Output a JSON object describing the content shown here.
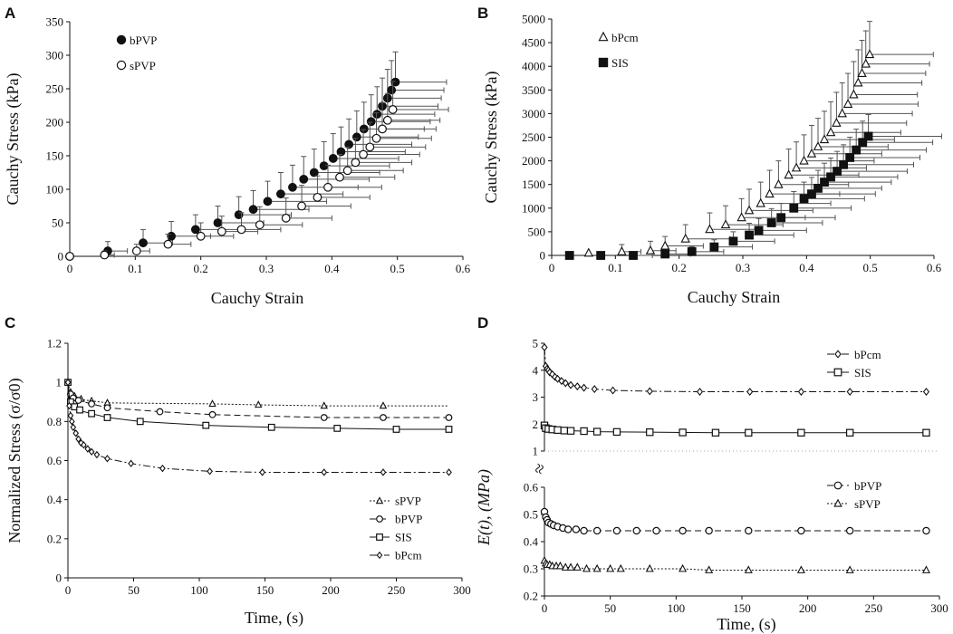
{
  "chart_data": [
    {
      "panel": "A",
      "type": "scatter",
      "xlabel": "Cauchy Strain",
      "ylabel": "Cauchy Stress (kPa)",
      "xlim": [
        0,
        0.6
      ],
      "ylim": [
        0,
        350
      ],
      "xticks": [
        0,
        0.1,
        0.2,
        0.3,
        0.4,
        0.5,
        0.6
      ],
      "yticks": [
        0,
        50,
        100,
        150,
        200,
        250,
        300,
        350
      ],
      "xtick_labels": [
        "0",
        "0.1",
        "0.2",
        "0.3",
        "0.4",
        "0.5",
        "0.6"
      ],
      "ytick_labels": [
        "0",
        "50",
        "100",
        "150",
        "200",
        "250",
        "300",
        "350"
      ],
      "legend_position": "top-left",
      "series": [
        {
          "name": "bPVP",
          "marker": "filled-circle",
          "x": [
            0.0,
            0.058,
            0.112,
            0.155,
            0.192,
            0.226,
            0.258,
            0.28,
            0.302,
            0.322,
            0.34,
            0.357,
            0.373,
            0.388,
            0.402,
            0.414,
            0.426,
            0.438,
            0.449,
            0.46,
            0.469,
            0.477,
            0.485,
            0.491,
            0.497
          ],
          "y": [
            0,
            8,
            20,
            30,
            40,
            50,
            62,
            70,
            82,
            93,
            103,
            115,
            125,
            135,
            146,
            156,
            167,
            178,
            190,
            201,
            212,
            224,
            236,
            248,
            260
          ],
          "xerr": [
            0,
            0.03,
            0.045,
            0.06,
            0.065,
            0.07,
            0.08,
            0.085,
            0.09,
            0.095,
            0.1,
            0.1,
            0.1,
            0.1,
            0.1,
            0.098,
            0.096,
            0.094,
            0.092,
            0.09,
            0.088,
            0.085,
            0.082,
            0.08,
            0.078
          ],
          "yerr": [
            0,
            14,
            20,
            22,
            22,
            25,
            27,
            28,
            30,
            32,
            33,
            34,
            35,
            36,
            37,
            37,
            38,
            39,
            40,
            40,
            41,
            42,
            43,
            44,
            45
          ]
        },
        {
          "name": "sPVP",
          "marker": "open-circle",
          "x": [
            0.0,
            0.053,
            0.102,
            0.15,
            0.2,
            0.232,
            0.262,
            0.29,
            0.33,
            0.354,
            0.378,
            0.394,
            0.412,
            0.424,
            0.436,
            0.448,
            0.458,
            0.468,
            0.477,
            0.485,
            0.493
          ],
          "y": [
            0,
            2,
            8,
            18,
            30,
            37,
            40,
            47,
            57,
            75,
            88,
            103,
            118,
            128,
            140,
            152,
            163,
            176,
            190,
            203,
            219
          ],
          "xerr": [
            0,
            0.015,
            0.02,
            0.035,
            0.05,
            0.055,
            0.06,
            0.065,
            0.07,
            0.075,
            0.08,
            0.082,
            0.084,
            0.085,
            0.086,
            0.086,
            0.085,
            0.084,
            0.082,
            0.08,
            0.085
          ],
          "yerr": [
            0,
            6,
            10,
            15,
            20,
            23,
            25,
            27,
            30,
            31,
            32,
            33,
            34,
            35,
            36,
            37,
            37,
            38,
            39,
            40,
            42
          ]
        }
      ]
    },
    {
      "panel": "B",
      "type": "scatter",
      "xlabel": "Cauchy Strain",
      "ylabel": "Cauchy Stress (kPa)",
      "xlim": [
        0,
        0.6
      ],
      "ylim": [
        0,
        5000
      ],
      "xticks": [
        0,
        0.1,
        0.2,
        0.3,
        0.4,
        0.5,
        0.6
      ],
      "yticks": [
        0,
        500,
        1000,
        1500,
        2000,
        2500,
        3000,
        3500,
        4000,
        4500,
        5000
      ],
      "xtick_labels": [
        "0",
        "0.1",
        "0.2",
        "0.3",
        "0.4",
        "0.5",
        "0.6"
      ],
      "ytick_labels": [
        "0",
        "500",
        "1000",
        "1500",
        "2000",
        "2500",
        "3000",
        "3500",
        "4000",
        "4500",
        "5000"
      ],
      "legend_position": "top-left",
      "series": [
        {
          "name": "bPcm",
          "marker": "open-triangle",
          "x": [
            0.058,
            0.11,
            0.155,
            0.178,
            0.21,
            0.248,
            0.273,
            0.298,
            0.31,
            0.328,
            0.342,
            0.356,
            0.372,
            0.384,
            0.396,
            0.408,
            0.418,
            0.428,
            0.438,
            0.447,
            0.456,
            0.465,
            0.474,
            0.481,
            0.487,
            0.493,
            0.499
          ],
          "y": [
            50,
            80,
            100,
            200,
            350,
            550,
            650,
            800,
            950,
            1100,
            1300,
            1500,
            1700,
            1850,
            2000,
            2150,
            2300,
            2450,
            2600,
            2800,
            3000,
            3200,
            3400,
            3650,
            3850,
            4050,
            4250
          ],
          "xerr": [
            0,
            0.03,
            0.04,
            0.06,
            0.07,
            0.08,
            0.09,
            0.1,
            0.1,
            0.11,
            0.11,
            0.11,
            0.11,
            0.11,
            0.11,
            0.11,
            0.11,
            0.11,
            0.11,
            0.11,
            0.11,
            0.11,
            0.1,
            0.1,
            0.1,
            0.1,
            0.1
          ],
          "yerr": [
            0,
            150,
            200,
            200,
            300,
            350,
            400,
            400,
            450,
            450,
            500,
            500,
            550,
            550,
            550,
            600,
            600,
            600,
            650,
            650,
            650,
            650,
            700,
            700,
            700,
            700,
            700
          ]
        },
        {
          "name": "SIS",
          "marker": "filled-square",
          "x": [
            0.028,
            0.077,
            0.128,
            0.178,
            0.22,
            0.255,
            0.285,
            0.31,
            0.325,
            0.345,
            0.36,
            0.38,
            0.396,
            0.408,
            0.418,
            0.428,
            0.438,
            0.448,
            0.458,
            0.468,
            0.478,
            0.488,
            0.497
          ],
          "y": [
            0,
            0,
            0,
            30,
            80,
            180,
            300,
            430,
            530,
            690,
            800,
            1000,
            1200,
            1300,
            1420,
            1550,
            1660,
            1780,
            1920,
            2070,
            2230,
            2390,
            2520
          ],
          "xerr": [
            0,
            0,
            0.03,
            0.04,
            0.05,
            0.06,
            0.065,
            0.07,
            0.075,
            0.08,
            0.085,
            0.09,
            0.095,
            0.1,
            0.1,
            0.105,
            0.105,
            0.11,
            0.11,
            0.11,
            0.11,
            0.11,
            0.115
          ],
          "yerr": [
            0,
            0,
            0,
            0,
            100,
            150,
            200,
            250,
            250,
            300,
            300,
            350,
            350,
            350,
            380,
            400,
            400,
            420,
            420,
            430,
            440,
            450,
            460
          ]
        }
      ]
    },
    {
      "panel": "C",
      "type": "line",
      "xlabel": "Time, (s)",
      "ylabel": "Normalized Stress (σ/σ0)",
      "xlim": [
        0,
        300
      ],
      "ylim": [
        0,
        1.2
      ],
      "xticks": [
        0,
        50,
        100,
        150,
        200,
        250,
        300
      ],
      "yticks": [
        0,
        0.2,
        0.4,
        0.6,
        0.8,
        1,
        1.2
      ],
      "xtick_labels": [
        "0",
        "50",
        "100",
        "150",
        "200",
        "250",
        "300"
      ],
      "ytick_labels": [
        "0",
        "0.2",
        "0.4",
        "0.6",
        "0.8",
        "1",
        "1.2"
      ],
      "legend_position": "bottom-right",
      "series": [
        {
          "name": "sPVP",
          "marker": "open-triangle",
          "dash": "dotted",
          "x": [
            0,
            1,
            2,
            3,
            5,
            8,
            12,
            18,
            30,
            110,
            145,
            195,
            240,
            290
          ],
          "y": [
            1.0,
            0.97,
            0.95,
            0.94,
            0.93,
            0.92,
            0.91,
            0.905,
            0.895,
            0.89,
            0.885,
            0.88,
            0.88,
            0.88
          ],
          "markers_x": [
            0,
            2,
            5,
            10,
            18,
            30,
            110,
            145,
            195,
            240
          ]
        },
        {
          "name": "bPVP",
          "marker": "open-circle",
          "dash": "dashed",
          "x": [
            0,
            1,
            2,
            4,
            7,
            12,
            18,
            30,
            70,
            110,
            195,
            240,
            290
          ],
          "y": [
            1.0,
            0.96,
            0.94,
            0.92,
            0.91,
            0.9,
            0.89,
            0.87,
            0.85,
            0.835,
            0.82,
            0.82,
            0.82
          ],
          "markers_x": [
            0,
            2,
            4,
            8,
            18,
            30,
            70,
            110,
            195,
            240,
            290
          ]
        },
        {
          "name": "SIS",
          "marker": "open-square",
          "dash": "solid",
          "x": [
            0,
            1,
            2,
            4,
            7,
            12,
            18,
            30,
            55,
            105,
            155,
            205,
            250,
            290
          ],
          "y": [
            1.0,
            0.93,
            0.9,
            0.88,
            0.865,
            0.85,
            0.84,
            0.82,
            0.8,
            0.78,
            0.77,
            0.765,
            0.76,
            0.76
          ],
          "markers_x": [
            0,
            2,
            5,
            9,
            18,
            30,
            55,
            105,
            155,
            205,
            250,
            290
          ]
        },
        {
          "name": "bPcm",
          "marker": "open-diamond",
          "dash": "dashdot",
          "x": [
            0,
            1,
            2,
            3,
            4,
            6,
            8,
            10,
            12,
            15,
            18,
            22,
            30,
            48,
            72,
            108,
            148,
            195,
            240,
            290
          ],
          "y": [
            1.0,
            0.88,
            0.83,
            0.8,
            0.77,
            0.74,
            0.71,
            0.69,
            0.68,
            0.66,
            0.645,
            0.63,
            0.61,
            0.585,
            0.56,
            0.545,
            0.54,
            0.54,
            0.54,
            0.54
          ],
          "markers_x": [
            0,
            1,
            2,
            3,
            4,
            6,
            8,
            10,
            12,
            15,
            18,
            22,
            30,
            48,
            72,
            108,
            148,
            195,
            240,
            290
          ]
        }
      ]
    },
    {
      "panel": "D",
      "type": "line",
      "xlabel": "Time, (s)",
      "ylabel": "E(t), (MPa)",
      "xlim": [
        0,
        300
      ],
      "broken_axis": true,
      "upper_range": [
        1,
        5
      ],
      "lower_range": [
        0.2,
        0.6
      ],
      "xticks": [
        0,
        50,
        100,
        150,
        200,
        250,
        300
      ],
      "xtick_labels": [
        "0",
        "50",
        "100",
        "150",
        "200",
        "250",
        "300"
      ],
      "upper_yticks": [
        1,
        2,
        3,
        4,
        5
      ],
      "upper_ytick_labels": [
        "1",
        "2",
        "3",
        "4",
        "5"
      ],
      "lower_yticks": [
        0.2,
        0.3,
        0.4,
        0.5,
        0.6
      ],
      "lower_ytick_labels": [
        "0.2",
        "0.3",
        "0.4",
        "0.5",
        "0.6"
      ],
      "legend_position": "top-right (each axis segment)",
      "upper_series": [
        {
          "name": "bPcm",
          "marker": "open-diamond",
          "dash": "dashdot",
          "x": [
            0,
            1,
            2,
            3,
            4,
            6,
            8,
            10,
            13,
            16,
            20,
            25,
            30,
            38,
            52,
            80,
            118,
            156,
            195,
            232,
            290
          ],
          "y": [
            4.85,
            4.15,
            4.05,
            4.0,
            3.92,
            3.85,
            3.75,
            3.68,
            3.6,
            3.52,
            3.45,
            3.4,
            3.35,
            3.3,
            3.25,
            3.22,
            3.2,
            3.2,
            3.2,
            3.2,
            3.2
          ],
          "markers_x": [
            0,
            1,
            2,
            3,
            4,
            6,
            8,
            10,
            13,
            16,
            20,
            25,
            30,
            38,
            52,
            80,
            118,
            156,
            195,
            232,
            290
          ]
        },
        {
          "name": "SIS",
          "marker": "open-square",
          "dash": "solid",
          "x": [
            0,
            1,
            3,
            6,
            10,
            15,
            20,
            30,
            40,
            55,
            80,
            105,
            130,
            155,
            195,
            232,
            290
          ],
          "y": [
            1.95,
            1.85,
            1.82,
            1.8,
            1.78,
            1.76,
            1.75,
            1.74,
            1.72,
            1.71,
            1.7,
            1.69,
            1.68,
            1.68,
            1.68,
            1.68,
            1.68
          ],
          "markers_x": [
            0,
            1,
            3,
            6,
            10,
            15,
            20,
            30,
            40,
            55,
            80,
            105,
            130,
            155,
            195,
            232,
            290
          ]
        }
      ],
      "lower_series": [
        {
          "name": "bPVP",
          "marker": "open-circle",
          "dash": "dashed",
          "x": [
            0,
            1,
            2,
            3,
            5,
            7,
            10,
            14,
            18,
            24,
            30,
            40,
            55,
            70,
            85,
            105,
            125,
            155,
            195,
            232,
            290
          ],
          "y": [
            0.51,
            0.49,
            0.48,
            0.47,
            0.465,
            0.46,
            0.455,
            0.45,
            0.445,
            0.445,
            0.44,
            0.44,
            0.44,
            0.44,
            0.44,
            0.44,
            0.44,
            0.44,
            0.44,
            0.44,
            0.44
          ],
          "markers_x": [
            0,
            1,
            2,
            3,
            5,
            7,
            10,
            14,
            18,
            24,
            30,
            40,
            55,
            70,
            85,
            105,
            125,
            155,
            195,
            232,
            290
          ]
        },
        {
          "name": "sPVP",
          "marker": "open-triangle",
          "dash": "dotted",
          "x": [
            0,
            1,
            2,
            4,
            6,
            9,
            12,
            16,
            20,
            25,
            32,
            40,
            50,
            58,
            80,
            105,
            125,
            155,
            195,
            232,
            290
          ],
          "y": [
            0.33,
            0.32,
            0.315,
            0.315,
            0.31,
            0.31,
            0.31,
            0.305,
            0.305,
            0.305,
            0.3,
            0.3,
            0.3,
            0.3,
            0.3,
            0.3,
            0.295,
            0.295,
            0.295,
            0.295,
            0.295
          ],
          "markers_x": [
            0,
            1,
            2,
            4,
            6,
            9,
            12,
            16,
            20,
            25,
            32,
            40,
            50,
            58,
            80,
            105,
            125,
            155,
            195,
            232,
            290
          ]
        }
      ]
    }
  ],
  "figure": {
    "background": "#ffffff",
    "ink": "#111111",
    "error_bar_color": "#555555",
    "axis_break_marker": "≈"
  }
}
